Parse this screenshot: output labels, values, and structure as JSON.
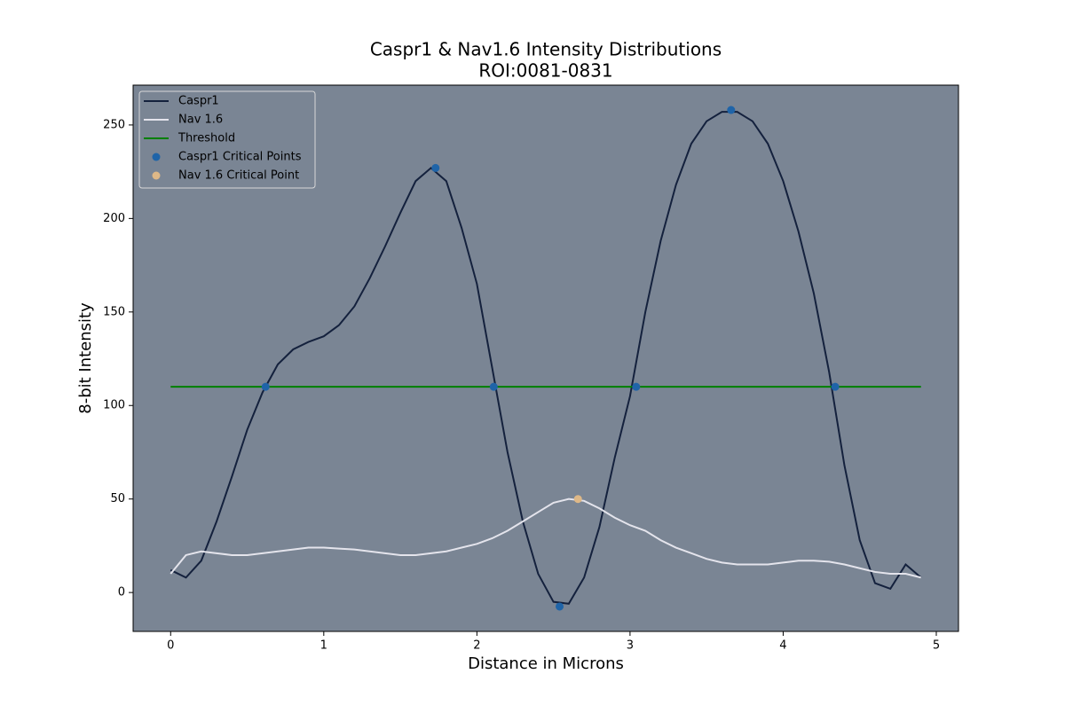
{
  "chart_data": {
    "type": "line",
    "title": "Caspr1 & Nav1.6 Intensity Distributions",
    "subtitle": "ROI:0081-0831",
    "xlabel": "Distance in Microns",
    "ylabel": "8-bit Intensity",
    "xlim": [
      -0.245,
      5.145
    ],
    "ylim": [
      -20.8,
      271.3
    ],
    "xticks": [
      0,
      1,
      2,
      3,
      4,
      5
    ],
    "yticks": [
      0,
      50,
      100,
      150,
      200,
      250
    ],
    "grid": false,
    "legend": "upper left",
    "background": "#7a8594",
    "series": [
      {
        "name": "Caspr1",
        "type": "line",
        "color": "#14213d",
        "x": [
          0,
          0.1,
          0.2,
          0.3,
          0.4,
          0.5,
          0.6,
          0.7,
          0.8,
          0.9,
          1.0,
          1.1,
          1.2,
          1.3,
          1.4,
          1.5,
          1.6,
          1.7,
          1.8,
          1.9,
          2.0,
          2.1,
          2.2,
          2.3,
          2.4,
          2.5,
          2.6,
          2.7,
          2.8,
          2.9,
          3.0,
          3.1,
          3.2,
          3.3,
          3.4,
          3.5,
          3.6,
          3.7,
          3.8,
          3.9,
          4.0,
          4.1,
          4.2,
          4.3,
          4.4,
          4.5,
          4.6,
          4.7,
          4.8,
          4.9
        ],
        "values": [
          12,
          8,
          17,
          38,
          62,
          87,
          107,
          122,
          130,
          134,
          137,
          143,
          153,
          168,
          185,
          203,
          220,
          227,
          220,
          195,
          165,
          120,
          75,
          38,
          10,
          -5,
          -6,
          8,
          35,
          72,
          105,
          150,
          188,
          218,
          240,
          252,
          257,
          257,
          252,
          240,
          220,
          193,
          160,
          118,
          68,
          28,
          5,
          2,
          15,
          8
        ]
      },
      {
        "name": "Nav 1.6",
        "type": "line",
        "color": "#e4e4ec",
        "x": [
          0,
          0.1,
          0.2,
          0.3,
          0.4,
          0.5,
          0.6,
          0.7,
          0.8,
          0.9,
          1.0,
          1.1,
          1.2,
          1.3,
          1.4,
          1.5,
          1.6,
          1.7,
          1.8,
          1.9,
          2.0,
          2.1,
          2.2,
          2.3,
          2.4,
          2.5,
          2.6,
          2.7,
          2.8,
          2.9,
          3.0,
          3.1,
          3.2,
          3.3,
          3.4,
          3.5,
          3.6,
          3.7,
          3.8,
          3.9,
          4.0,
          4.1,
          4.2,
          4.3,
          4.4,
          4.5,
          4.6,
          4.7,
          4.8,
          4.9
        ],
        "values": [
          10,
          20,
          22,
          21,
          20,
          20,
          21,
          22,
          23,
          24,
          24,
          23.5,
          23,
          22,
          21,
          20,
          20,
          21,
          22,
          24,
          26,
          29,
          33,
          38,
          43,
          48,
          50,
          49,
          45,
          40,
          36,
          33,
          28,
          24,
          21,
          18,
          16,
          15,
          15,
          15,
          16,
          17,
          17,
          16.5,
          15,
          13,
          11,
          10,
          10,
          8
        ]
      },
      {
        "name": "Threshold",
        "type": "line",
        "color": "#008000",
        "x": [
          0,
          4.9
        ],
        "values": [
          110,
          110
        ]
      },
      {
        "name": "Caspr1 Critical Points",
        "type": "scatter",
        "color": "#1f64a8",
        "x": [
          0.62,
          1.73,
          2.11,
          2.54,
          3.04,
          3.66,
          4.34
        ],
        "values": [
          110,
          227,
          110,
          -7.5,
          110,
          258,
          110
        ]
      },
      {
        "name": "Nav 1.6 Critical Point",
        "type": "scatter",
        "color": "#deb887",
        "x": [
          2.66
        ],
        "values": [
          50
        ]
      }
    ]
  }
}
